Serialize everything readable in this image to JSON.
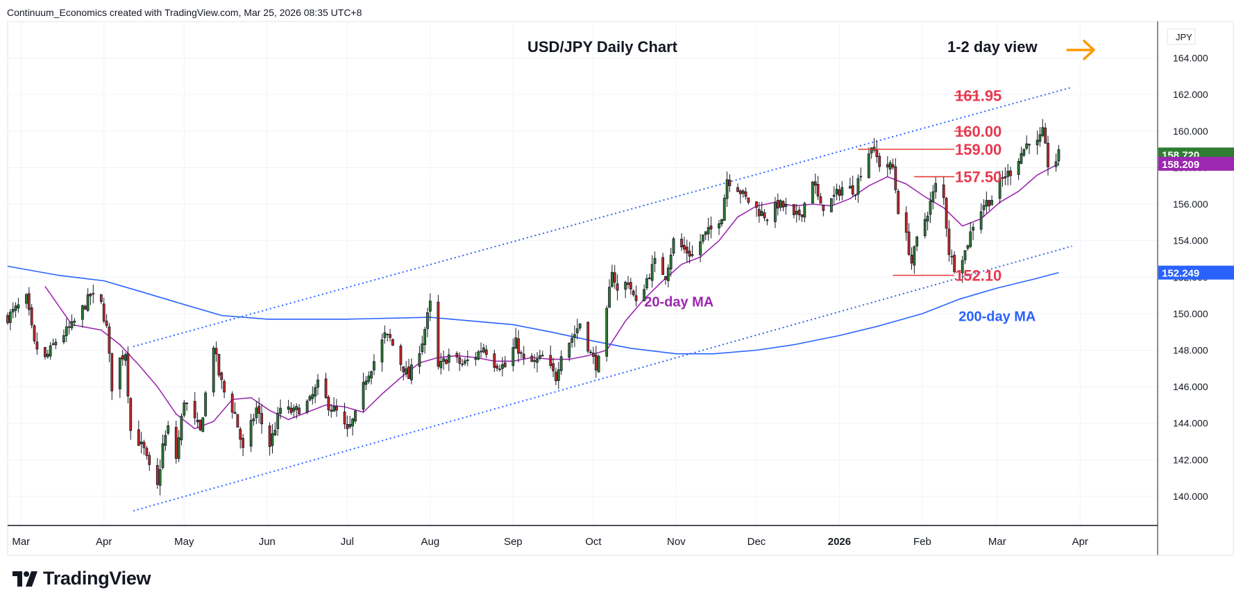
{
  "attribution": "Continuum_Economics created with TradingView.com, Mar 25, 2026 08:35 UTC+8",
  "brand": {
    "name": "TradingView",
    "icon": "tradingview-logo-icon"
  },
  "colors": {
    "up": "#2e7d32",
    "down": "#c62828",
    "ma20": "#9c27b0",
    "ma200": "#2962ff",
    "level": "#e53935",
    "level_text": "#e53950",
    "arrow": "#ff9800",
    "price_tag": "#2e7d32",
    "ma20_tag": "#9c27b0",
    "ma200_tag": "#2962ff"
  },
  "chart_data": {
    "type": "candlestick",
    "title": "USD/JPY Daily Chart",
    "view_label": "1-2 day view",
    "view_icon": "arrow-right-icon",
    "currency": "JPY",
    "ylim": [
      138.4,
      166
    ],
    "xlim": [
      "2025-02-24",
      "2026-04-30"
    ],
    "grid": true,
    "y_ticks": [
      "140.000",
      "142.000",
      "144.000",
      "146.000",
      "148.000",
      "150.000",
      "152.000",
      "154.000",
      "156.000",
      "158.000",
      "160.000",
      "162.000",
      "164.000"
    ],
    "x_ticks": [
      {
        "label": "Mar",
        "date": "2025-03-01"
      },
      {
        "label": "Apr",
        "date": "2025-04-01"
      },
      {
        "label": "May",
        "date": "2025-05-01"
      },
      {
        "label": "Jun",
        "date": "2025-06-01"
      },
      {
        "label": "Jul",
        "date": "2025-07-01"
      },
      {
        "label": "Aug",
        "date": "2025-08-01"
      },
      {
        "label": "Sep",
        "date": "2025-09-01"
      },
      {
        "label": "Oct",
        "date": "2025-10-01"
      },
      {
        "label": "Nov",
        "date": "2025-11-01"
      },
      {
        "label": "Dec",
        "date": "2025-12-01"
      },
      {
        "label": "2026",
        "date": "2026-01-01",
        "bold": true
      },
      {
        "label": "Feb",
        "date": "2026-02-01"
      },
      {
        "label": "Mar",
        "date": "2026-03-01"
      },
      {
        "label": "Apr",
        "date": "2026-04-01"
      }
    ],
    "last_price": "158.720",
    "ma20_value": "158.209",
    "ma200_value": "152.249",
    "levels": [
      {
        "label": "161.95",
        "value": 161.95,
        "from": "2026-02-22"
      },
      {
        "label": "160.00",
        "value": 160.0,
        "from": "2026-02-17"
      },
      {
        "label": "159.00",
        "value": 159.0,
        "from": "2026-01-08"
      },
      {
        "label": "157.50",
        "value": 157.5,
        "from": "2026-01-29"
      },
      {
        "label": "152.10",
        "value": 152.1,
        "from": "2026-01-21"
      }
    ],
    "channel": [
      {
        "name": "upper",
        "from": {
          "date": "2025-04-12",
          "value": 148.2
        },
        "to": {
          "date": "2026-03-29",
          "value": 162.4
        }
      },
      {
        "name": "lower",
        "from": {
          "date": "2025-04-12",
          "value": 139.2
        },
        "to": {
          "date": "2026-03-29",
          "value": 153.7
        }
      }
    ],
    "annotations": [
      {
        "text": "20-day MA",
        "date": "2025-11-02",
        "value": 150.4,
        "color": "#9c27b0"
      },
      {
        "text": "200-day MA",
        "date": "2026-03-01",
        "value": 149.6,
        "color": "#2962ff"
      }
    ],
    "price_path": [
      [
        "2025-02-24",
        149.8
      ],
      [
        "2025-03-03",
        150.8
      ],
      [
        "2025-03-06",
        148.3
      ],
      [
        "2025-03-10",
        147.5
      ],
      [
        "2025-03-14",
        148.5
      ],
      [
        "2025-03-20",
        149.3
      ],
      [
        "2025-03-25",
        150.5
      ],
      [
        "2025-03-27",
        151.0
      ],
      [
        "2025-03-31",
        150.5
      ],
      [
        "2025-04-02",
        149.2
      ],
      [
        "2025-04-04",
        146.0
      ],
      [
        "2025-04-07",
        147.5
      ],
      [
        "2025-04-09",
        147.9
      ],
      [
        "2025-04-11",
        143.6
      ],
      [
        "2025-04-14",
        143.0
      ],
      [
        "2025-04-16",
        142.5
      ],
      [
        "2025-04-18",
        141.5
      ],
      [
        "2025-04-21",
        140.5
      ],
      [
        "2025-04-23",
        142.8
      ],
      [
        "2025-04-25",
        143.7
      ],
      [
        "2025-04-28",
        142.1
      ],
      [
        "2025-05-01",
        145.3
      ],
      [
        "2025-05-07",
        143.5
      ],
      [
        "2025-05-09",
        145.6
      ],
      [
        "2025-05-12",
        148.3
      ],
      [
        "2025-05-14",
        146.7
      ],
      [
        "2025-05-16",
        145.7
      ],
      [
        "2025-05-20",
        144.5
      ],
      [
        "2025-05-23",
        142.5
      ],
      [
        "2025-05-28",
        144.8
      ],
      [
        "2025-06-02",
        142.8
      ],
      [
        "2025-06-06",
        144.8
      ],
      [
        "2025-06-11",
        144.6
      ],
      [
        "2025-06-17",
        145.2
      ],
      [
        "2025-06-20",
        146.1
      ],
      [
        "2025-06-24",
        145.0
      ],
      [
        "2025-06-27",
        144.6
      ],
      [
        "2025-07-01",
        143.5
      ],
      [
        "2025-07-04",
        144.4
      ],
      [
        "2025-07-08",
        146.5
      ],
      [
        "2025-07-11",
        147.4
      ],
      [
        "2025-07-15",
        148.8
      ],
      [
        "2025-07-17",
        148.6
      ],
      [
        "2025-07-21",
        147.3
      ],
      [
        "2025-07-24",
        146.5
      ],
      [
        "2025-07-29",
        148.5
      ],
      [
        "2025-08-01",
        150.5
      ],
      [
        "2025-08-04",
        147.0
      ],
      [
        "2025-08-08",
        147.7
      ],
      [
        "2025-08-13",
        147.2
      ],
      [
        "2025-08-18",
        147.7
      ],
      [
        "2025-08-21",
        148.2
      ],
      [
        "2025-08-25",
        147.3
      ],
      [
        "2025-08-29",
        147.1
      ],
      [
        "2025-09-02",
        148.4
      ],
      [
        "2025-09-05",
        147.4
      ],
      [
        "2025-09-09",
        147.3
      ],
      [
        "2025-09-12",
        147.6
      ],
      [
        "2025-09-17",
        146.5
      ],
      [
        "2025-09-19",
        147.9
      ],
      [
        "2025-09-24",
        148.9
      ],
      [
        "2025-09-26",
        149.5
      ],
      [
        "2025-09-30",
        147.8
      ],
      [
        "2025-10-02",
        147.2
      ],
      [
        "2025-10-03",
        147.4
      ],
      [
        "2025-10-06",
        150.0
      ],
      [
        "2025-10-08",
        152.5
      ],
      [
        "2025-10-10",
        151.2
      ],
      [
        "2025-10-14",
        151.8
      ],
      [
        "2025-10-17",
        150.5
      ],
      [
        "2025-10-21",
        151.9
      ],
      [
        "2025-10-24",
        152.8
      ],
      [
        "2025-10-28",
        152.1
      ],
      [
        "2025-10-31",
        154.0
      ],
      [
        "2025-11-04",
        153.5
      ],
      [
        "2025-11-07",
        153.2
      ],
      [
        "2025-11-11",
        154.2
      ],
      [
        "2025-11-14",
        154.6
      ],
      [
        "2025-11-18",
        155.4
      ],
      [
        "2025-11-20",
        157.4
      ],
      [
        "2025-11-24",
        156.9
      ],
      [
        "2025-11-27",
        156.3
      ],
      [
        "2025-12-02",
        155.6
      ],
      [
        "2025-12-05",
        155.3
      ],
      [
        "2025-12-09",
        156.0
      ],
      [
        "2025-12-12",
        155.8
      ],
      [
        "2025-12-15",
        155.2
      ],
      [
        "2025-12-18",
        155.6
      ],
      [
        "2025-12-22",
        157.4
      ],
      [
        "2025-12-25",
        155.8
      ],
      [
        "2025-12-29",
        156.2
      ],
      [
        "2026-01-02",
        156.9
      ],
      [
        "2026-01-07",
        156.8
      ],
      [
        "2026-01-09",
        157.8
      ],
      [
        "2026-01-13",
        159.2
      ],
      [
        "2026-01-16",
        158.2
      ],
      [
        "2026-01-21",
        158.0
      ],
      [
        "2026-01-23",
        155.7
      ],
      [
        "2026-01-26",
        154.2
      ],
      [
        "2026-01-28",
        152.8
      ],
      [
        "2026-01-30",
        154.0
      ],
      [
        "2026-02-03",
        155.6
      ],
      [
        "2026-02-06",
        157.0
      ],
      [
        "2026-02-09",
        156.3
      ],
      [
        "2026-02-11",
        153.4
      ],
      [
        "2026-02-13",
        152.6
      ],
      [
        "2026-02-17",
        153.4
      ],
      [
        "2026-02-20",
        154.9
      ],
      [
        "2026-02-24",
        156.0
      ],
      [
        "2026-02-27",
        156.3
      ],
      [
        "2026-03-03",
        157.4
      ],
      [
        "2026-03-06",
        157.8
      ],
      [
        "2026-03-10",
        158.8
      ],
      [
        "2026-03-13",
        159.5
      ],
      [
        "2026-03-16",
        159.3
      ],
      [
        "2026-03-18",
        159.9
      ],
      [
        "2026-03-20",
        158.2
      ],
      [
        "2026-03-23",
        158.4
      ],
      [
        "2026-03-24",
        158.7
      ]
    ],
    "ma20_path": [
      [
        "2025-03-10",
        151.5
      ],
      [
        "2025-03-20",
        149.4
      ],
      [
        "2025-03-31",
        149.1
      ],
      [
        "2025-04-07",
        148.3
      ],
      [
        "2025-04-14",
        147.2
      ],
      [
        "2025-04-21",
        146.0
      ],
      [
        "2025-04-28",
        144.5
      ],
      [
        "2025-05-05",
        143.7
      ],
      [
        "2025-05-12",
        144.1
      ],
      [
        "2025-05-19",
        145.3
      ],
      [
        "2025-05-26",
        145.4
      ],
      [
        "2025-06-02",
        144.7
      ],
      [
        "2025-06-09",
        144.2
      ],
      [
        "2025-06-16",
        144.6
      ],
      [
        "2025-06-23",
        145.0
      ],
      [
        "2025-06-30",
        144.9
      ],
      [
        "2025-07-07",
        144.6
      ],
      [
        "2025-07-14",
        145.6
      ],
      [
        "2025-07-21",
        146.5
      ],
      [
        "2025-07-28",
        147.3
      ],
      [
        "2025-08-04",
        147.6
      ],
      [
        "2025-08-11",
        147.7
      ],
      [
        "2025-08-18",
        147.6
      ],
      [
        "2025-08-25",
        147.4
      ],
      [
        "2025-09-01",
        147.4
      ],
      [
        "2025-09-08",
        147.6
      ],
      [
        "2025-09-15",
        147.5
      ],
      [
        "2025-09-22",
        147.5
      ],
      [
        "2025-09-29",
        147.7
      ],
      [
        "2025-10-06",
        148.0
      ],
      [
        "2025-10-13",
        149.6
      ],
      [
        "2025-10-20",
        150.8
      ],
      [
        "2025-10-27",
        151.8
      ],
      [
        "2025-11-03",
        152.7
      ],
      [
        "2025-11-10",
        153.1
      ],
      [
        "2025-11-17",
        154.0
      ],
      [
        "2025-11-24",
        155.3
      ],
      [
        "2025-12-01",
        155.9
      ],
      [
        "2025-12-08",
        156.1
      ],
      [
        "2025-12-15",
        155.9
      ],
      [
        "2025-12-22",
        156.0
      ],
      [
        "2025-12-29",
        155.9
      ],
      [
        "2026-01-05",
        156.3
      ],
      [
        "2026-01-12",
        157.0
      ],
      [
        "2026-01-19",
        157.5
      ],
      [
        "2026-01-26",
        157.1
      ],
      [
        "2026-02-02",
        156.4
      ],
      [
        "2026-02-09",
        155.8
      ],
      [
        "2026-02-16",
        154.8
      ],
      [
        "2026-02-23",
        155.2
      ],
      [
        "2026-03-02",
        156.1
      ],
      [
        "2026-03-09",
        156.7
      ],
      [
        "2026-03-16",
        157.6
      ],
      [
        "2026-03-24",
        158.21
      ]
    ],
    "ma200_path": [
      [
        "2025-02-24",
        152.6
      ],
      [
        "2025-03-15",
        152.1
      ],
      [
        "2025-04-01",
        151.8
      ],
      [
        "2025-04-15",
        151.2
      ],
      [
        "2025-05-01",
        150.5
      ],
      [
        "2025-05-15",
        149.9
      ],
      [
        "2025-06-01",
        149.7
      ],
      [
        "2025-07-01",
        149.7
      ],
      [
        "2025-08-01",
        149.8
      ],
      [
        "2025-09-01",
        149.4
      ],
      [
        "2025-09-15",
        149.0
      ],
      [
        "2025-10-01",
        148.5
      ],
      [
        "2025-10-15",
        148.1
      ],
      [
        "2025-11-01",
        147.8
      ],
      [
        "2025-11-15",
        147.8
      ],
      [
        "2025-12-01",
        148.0
      ],
      [
        "2025-12-15",
        148.3
      ],
      [
        "2026-01-01",
        148.8
      ],
      [
        "2026-01-15",
        149.3
      ],
      [
        "2026-02-01",
        150.0
      ],
      [
        "2026-02-15",
        150.8
      ],
      [
        "2026-03-01",
        151.4
      ],
      [
        "2026-03-15",
        151.9
      ],
      [
        "2026-03-24",
        152.25
      ]
    ]
  }
}
